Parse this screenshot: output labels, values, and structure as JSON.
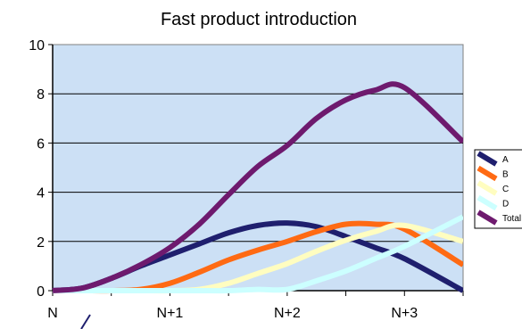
{
  "chart_data": {
    "type": "line",
    "title": "Fast product introduction",
    "categories": [
      "N",
      "N+1",
      "N+2",
      "N+3"
    ],
    "x": [
      0,
      0.25,
      0.5,
      0.75,
      1,
      1.25,
      1.5,
      1.75,
      2,
      2.25,
      2.5,
      2.75,
      3,
      3.5
    ],
    "ylim": [
      0,
      10
    ],
    "yticks": [
      0,
      2,
      4,
      6,
      8,
      10
    ],
    "grid": true,
    "legend_position": "right",
    "plot_background": "#cce0f5",
    "series": [
      {
        "name": "A",
        "color": "#1f1f6e",
        "values": [
          0,
          0.1,
          0.5,
          1.0,
          1.45,
          1.9,
          2.35,
          2.65,
          2.75,
          2.6,
          2.2,
          1.75,
          1.3,
          0
        ]
      },
      {
        "name": "B",
        "color": "#ff6a13",
        "values": [
          0,
          0,
          0,
          0.05,
          0.3,
          0.75,
          1.25,
          1.65,
          2.0,
          2.4,
          2.7,
          2.7,
          2.5,
          1.05
        ]
      },
      {
        "name": "C",
        "color": "#fffdc0",
        "values": [
          0,
          0,
          0,
          0,
          0,
          0.05,
          0.3,
          0.7,
          1.1,
          1.6,
          2.05,
          2.4,
          2.65,
          2.0
        ]
      },
      {
        "name": "D",
        "color": "#ccffff",
        "values": [
          0,
          0,
          0,
          0,
          0,
          0,
          0,
          0.05,
          0.05,
          0.4,
          0.8,
          1.3,
          1.8,
          3.0
        ]
      },
      {
        "name": "Total",
        "color": "#6e1a6e",
        "values": [
          0,
          0.1,
          0.5,
          1.05,
          1.75,
          2.7,
          3.9,
          5.05,
          5.9,
          7.0,
          7.75,
          8.15,
          8.25,
          6.05
        ]
      }
    ]
  }
}
